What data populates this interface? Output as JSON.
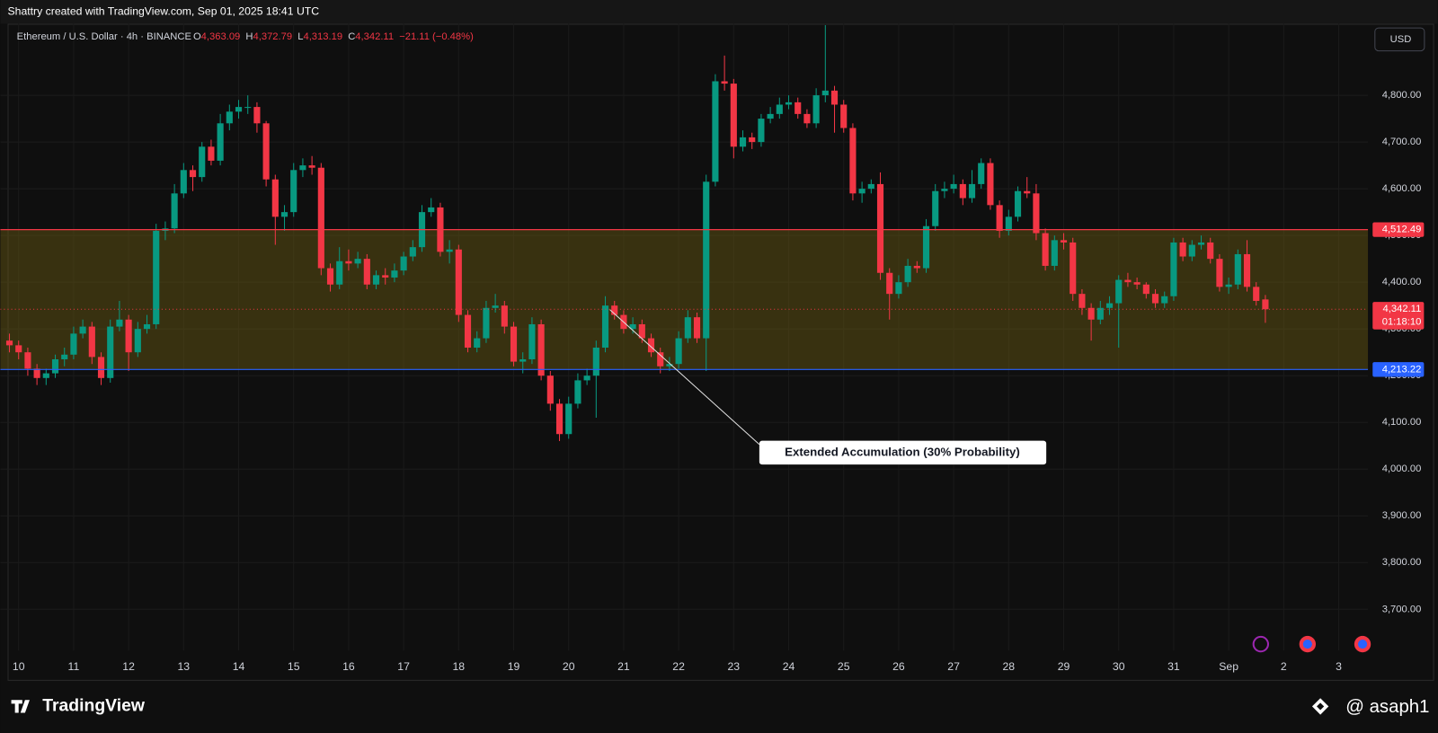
{
  "header": "Shattry created with TradingView.com, Sep 01, 2025 18:41 UTC",
  "legend": {
    "symbol": "Ethereum / U.S. Dollar · 4h · BINANCE",
    "fields": [
      {
        "key": "O",
        "value": "4,363.09"
      },
      {
        "key": "H",
        "value": "4,372.79"
      },
      {
        "key": "L",
        "value": "4,313.19"
      },
      {
        "key": "C",
        "value": "4,342.11"
      }
    ],
    "change": "−21.11 (−0.48%)"
  },
  "currency": "USD",
  "footer": {
    "brand": "TradingView",
    "author": "@ asaph1"
  },
  "chart_data": {
    "type": "candlestick",
    "up_color": "#089981",
    "down_color": "#f23645",
    "xlim": [
      -1,
      148
    ],
    "ylim": [
      3611.76,
      4952.94
    ],
    "grid": true,
    "xticks": [
      {
        "value": 1,
        "label": "10"
      },
      {
        "value": 7,
        "label": "11"
      },
      {
        "value": 13,
        "label": "12"
      },
      {
        "value": 19,
        "label": "13"
      },
      {
        "value": 25,
        "label": "14"
      },
      {
        "value": 31,
        "label": "15"
      },
      {
        "value": 37,
        "label": "16"
      },
      {
        "value": 43,
        "label": "17"
      },
      {
        "value": 49,
        "label": "18"
      },
      {
        "value": 55,
        "label": "19"
      },
      {
        "value": 61,
        "label": "20"
      },
      {
        "value": 67,
        "label": "21"
      },
      {
        "value": 73,
        "label": "22"
      },
      {
        "value": 79,
        "label": "23"
      },
      {
        "value": 85,
        "label": "24"
      },
      {
        "value": 91,
        "label": "25"
      },
      {
        "value": 97,
        "label": "26"
      },
      {
        "value": 103,
        "label": "27"
      },
      {
        "value": 109,
        "label": "28"
      },
      {
        "value": 115,
        "label": "29"
      },
      {
        "value": 121,
        "label": "30"
      },
      {
        "value": 127,
        "label": "31"
      },
      {
        "value": 133,
        "label": "Sep"
      },
      {
        "value": 139,
        "label": "2"
      },
      {
        "value": 145,
        "label": "3"
      }
    ],
    "yticks": [
      {
        "value": 3700,
        "label": "3,700.00"
      },
      {
        "value": 3800,
        "label": "3,800.00"
      },
      {
        "value": 3900,
        "label": "3,900.00"
      },
      {
        "value": 4000,
        "label": "4,000.00"
      },
      {
        "value": 4100,
        "label": "4,100.00"
      },
      {
        "value": 4200,
        "label": "4,200.00"
      },
      {
        "value": 4300,
        "label": "4,300.00"
      },
      {
        "value": 4400,
        "label": "4,400.00"
      },
      {
        "value": 4500,
        "label": "4,500.00"
      },
      {
        "value": 4600,
        "label": "4,600.00"
      },
      {
        "value": 4700,
        "label": "4,700.00"
      },
      {
        "value": 4800,
        "label": "4,800.00"
      }
    ],
    "open": [
      4275,
      4265,
      4250,
      4215,
      4195,
      4205,
      4235,
      4245,
      4290,
      4305,
      4240,
      4195,
      4305,
      4320,
      4250,
      4300,
      4310,
      4510,
      4515,
      4590,
      4640,
      4625,
      4690,
      4660,
      4740,
      4765,
      4775,
      4775,
      4740,
      4620,
      4540,
      4550,
      4640,
      4650,
      4645,
      4430,
      4395,
      4445,
      4440,
      4450,
      4395,
      4415,
      4410,
      4425,
      4455,
      4475,
      4550,
      4560,
      4465,
      4470,
      4330,
      4260,
      4280,
      4345,
      4350,
      4305,
      4230,
      4235,
      4310,
      4200,
      4140,
      4075,
      4140,
      4190,
      4200,
      4260,
      4350,
      4330,
      4300,
      4310,
      4280,
      4250,
      4220,
      4225,
      4280,
      4325,
      4280,
      4615,
      4830,
      4825,
      4690,
      4710,
      4700,
      4750,
      4760,
      4780,
      4785,
      4760,
      4740,
      4800,
      4810,
      4780,
      4730,
      4590,
      4600,
      4610,
      4420,
      4375,
      4400,
      4435,
      4430,
      4520,
      4595,
      4600,
      4610,
      4580,
      4610,
      4655,
      4565,
      4510,
      4540,
      4595,
      4590,
      4505,
      4435,
      4490,
      4485,
      4375,
      4345,
      4320,
      4345,
      4355,
      4405,
      4400,
      4395,
      4375,
      4355,
      4370,
      4485,
      4455,
      4480,
      4485,
      4450,
      4390,
      4395,
      4460,
      4390,
      4363.09
    ],
    "high": [
      4290,
      4275,
      4260,
      4225,
      4215,
      4245,
      4260,
      4305,
      4320,
      4315,
      4250,
      4320,
      4360,
      4330,
      4315,
      4330,
      4525,
      4530,
      4610,
      4655,
      4650,
      4700,
      4705,
      4760,
      4780,
      4790,
      4800,
      4785,
      4745,
      4630,
      4565,
      4655,
      4665,
      4670,
      4655,
      4440,
      4475,
      4470,
      4465,
      4460,
      4425,
      4430,
      4440,
      4465,
      4490,
      4565,
      4580,
      4570,
      4490,
      4480,
      4340,
      4295,
      4360,
      4375,
      4360,
      4315,
      4250,
      4325,
      4320,
      4210,
      4150,
      4155,
      4205,
      4215,
      4275,
      4370,
      4360,
      4340,
      4325,
      4320,
      4290,
      4260,
      4240,
      4295,
      4340,
      4335,
      4630,
      4845,
      4885,
      4835,
      4725,
      4720,
      4760,
      4775,
      4795,
      4800,
      4795,
      4770,
      4815,
      4950,
      4820,
      4790,
      4740,
      4615,
      4620,
      4635,
      4430,
      4415,
      4450,
      4445,
      4535,
      4610,
      4615,
      4630,
      4620,
      4640,
      4665,
      4665,
      4575,
      4555,
      4605,
      4625,
      4610,
      4515,
      4500,
      4505,
      4495,
      4385,
      4355,
      4360,
      4370,
      4415,
      4420,
      4410,
      4400,
      4385,
      4380,
      4495,
      4495,
      4490,
      4500,
      4495,
      4460,
      4410,
      4470,
      4490,
      4400,
      4372.79
    ],
    "low": [
      4250,
      4235,
      4200,
      4180,
      4180,
      4195,
      4220,
      4235,
      4280,
      4225,
      4180,
      4185,
      4295,
      4210,
      4240,
      4290,
      4300,
      4490,
      4505,
      4580,
      4595,
      4615,
      4650,
      4650,
      4725,
      4750,
      4760,
      4720,
      4605,
      4480,
      4510,
      4540,
      4625,
      4630,
      4415,
      4380,
      4385,
      4425,
      4430,
      4385,
      4385,
      4395,
      4400,
      4415,
      4445,
      4465,
      4540,
      4455,
      4440,
      4315,
      4250,
      4250,
      4270,
      4335,
      4290,
      4220,
      4205,
      4225,
      4190,
      4125,
      4060,
      4065,
      4130,
      4180,
      4110,
      4250,
      4320,
      4290,
      4290,
      4270,
      4240,
      4205,
      4210,
      4215,
      4270,
      4270,
      4210,
      4605,
      4810,
      4665,
      4680,
      4685,
      4690,
      4740,
      4750,
      4770,
      4750,
      4730,
      4730,
      4785,
      4720,
      4720,
      4575,
      4570,
      4590,
      4405,
      4320,
      4365,
      4390,
      4420,
      4420,
      4510,
      4580,
      4590,
      4565,
      4570,
      4600,
      4555,
      4495,
      4500,
      4530,
      4580,
      4490,
      4425,
      4425,
      4470,
      4360,
      4330,
      4275,
      4310,
      4330,
      4260,
      4390,
      4385,
      4365,
      4345,
      4345,
      4360,
      4445,
      4445,
      4470,
      4440,
      4380,
      4375,
      4385,
      4380,
      4350,
      4313.19
    ],
    "close": [
      4265,
      4250,
      4215,
      4195,
      4205,
      4235,
      4245,
      4290,
      4305,
      4240,
      4195,
      4305,
      4320,
      4250,
      4300,
      4310,
      4510,
      4515,
      4590,
      4640,
      4625,
      4690,
      4660,
      4740,
      4765,
      4775,
      4775,
      4740,
      4620,
      4540,
      4550,
      4640,
      4650,
      4645,
      4430,
      4395,
      4445,
      4440,
      4450,
      4395,
      4415,
      4410,
      4425,
      4455,
      4475,
      4550,
      4560,
      4465,
      4470,
      4330,
      4260,
      4280,
      4345,
      4350,
      4305,
      4230,
      4235,
      4310,
      4200,
      4140,
      4075,
      4140,
      4190,
      4200,
      4260,
      4350,
      4330,
      4300,
      4310,
      4280,
      4250,
      4220,
      4225,
      4280,
      4325,
      4280,
      4615,
      4830,
      4825,
      4690,
      4710,
      4700,
      4750,
      4760,
      4780,
      4785,
      4760,
      4740,
      4800,
      4810,
      4780,
      4730,
      4590,
      4600,
      4610,
      4420,
      4375,
      4400,
      4435,
      4430,
      4520,
      4595,
      4600,
      4610,
      4580,
      4610,
      4655,
      4565,
      4510,
      4540,
      4595,
      4590,
      4505,
      4435,
      4490,
      4485,
      4375,
      4345,
      4320,
      4345,
      4355,
      4405,
      4400,
      4395,
      4375,
      4355,
      4370,
      4485,
      4455,
      4480,
      4485,
      4450,
      4390,
      4395,
      4460,
      4390,
      4360,
      4342.11
    ],
    "last_price_label": "4,342.11",
    "countdown": "01:18:10",
    "zone_color": "#6b5a12",
    "levels": [
      {
        "value": 4512.49,
        "label": "4,512.49",
        "color": "#f23645"
      },
      {
        "value": 4213.22,
        "label": "4,213.22",
        "color": "#2962ff"
      }
    ],
    "annotation": "Extended Accumulation (30% Probability)"
  }
}
